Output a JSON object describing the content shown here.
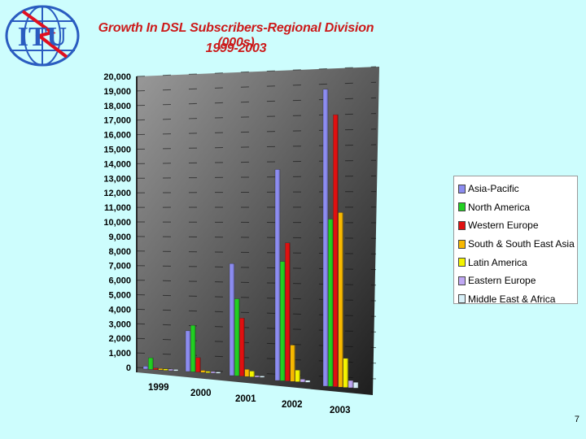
{
  "logo": {
    "text": "ITU",
    "icon": "itu-globe-logo"
  },
  "title_line1": "Growth In DSL Subscribers-Regional Division (000s)",
  "title_line2": "1999-2003",
  "page_number": "7",
  "colors": {
    "background": "#cdfdfd",
    "title": "#cc1a1a",
    "Asia-Pacific": "#8c8cf0",
    "North America": "#22d022",
    "Western Europe": "#e01010",
    "South & South East Asia": "#f7b800",
    "Latin America": "#f4f400",
    "Eastern Europe": "#c0a8f4",
    "Middle East & Africa": "#d8f0f8"
  },
  "chart_data": {
    "type": "bar",
    "style": "3d-clustered",
    "title": "Growth In DSL Subscribers-Regional Division (000s) 1999-2003",
    "categories": [
      "1999",
      "2000",
      "2001",
      "2002",
      "2003"
    ],
    "ylim": [
      0,
      20000
    ],
    "yticks": [
      "20,000",
      "19,000",
      "18,000",
      "17,000",
      "16,000",
      "15,000",
      "14,000",
      "13,000",
      "12,000",
      "11,000",
      "10,000",
      "9,000",
      "8,000",
      "7,000",
      "6,000",
      "5,000",
      "4,000",
      "3,000",
      "2,000",
      "1,000",
      "0"
    ],
    "legend_position": "right",
    "series": [
      {
        "name": "Asia-Pacific",
        "values": [
          200,
          2800,
          7700,
          14500,
          20400
        ]
      },
      {
        "name": "North America",
        "values": [
          800,
          3200,
          5300,
          8200,
          11500
        ]
      },
      {
        "name": "Western Europe",
        "values": [
          100,
          1000,
          4000,
          9500,
          18700
        ]
      },
      {
        "name": "South & South East Asia",
        "values": [
          0,
          150,
          500,
          2500,
          12000
        ]
      },
      {
        "name": "Latin America",
        "values": [
          0,
          50,
          400,
          800,
          2000
        ]
      },
      {
        "name": "Eastern Europe",
        "values": [
          0,
          20,
          80,
          200,
          500
        ]
      },
      {
        "name": "Middle East & Africa",
        "values": [
          0,
          10,
          50,
          150,
          400
        ]
      }
    ]
  }
}
